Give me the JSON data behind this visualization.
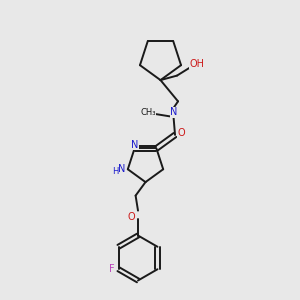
{
  "background_color": "#e8e8e8",
  "bond_color": "#1a1a1a",
  "nitrogen_color": "#1a1acc",
  "oxygen_color": "#cc1a1a",
  "fluorine_color": "#bb44bb",
  "figsize": [
    3.0,
    3.0
  ],
  "dpi": 100,
  "xlim": [
    0,
    10
  ],
  "ylim": [
    0,
    10
  ]
}
